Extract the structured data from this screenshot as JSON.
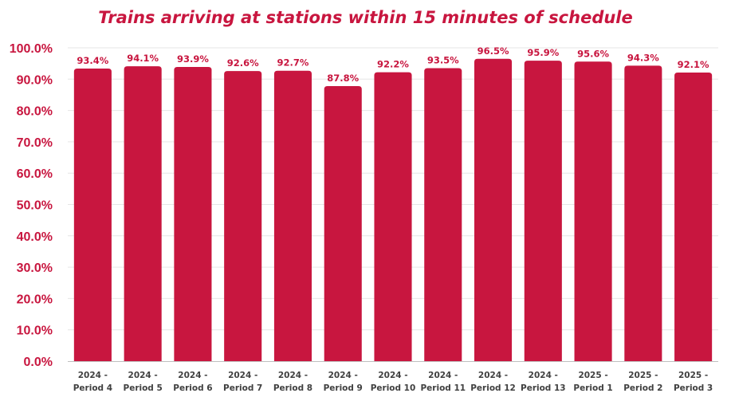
{
  "colors": {
    "accent": "#c8163f",
    "grid": "#e6e6e6",
    "axis": "#bfbfbf",
    "xtick_text": "#404040"
  },
  "chart_data": {
    "type": "bar",
    "title": "Trains arriving at stations within 15 minutes of schedule",
    "xlabel": "",
    "ylabel": "",
    "ylim": [
      0,
      100
    ],
    "ytick_values": [
      0,
      10,
      20,
      30,
      40,
      50,
      60,
      70,
      80,
      90,
      100
    ],
    "ytick_labels": [
      "0.0%",
      "10.0%",
      "20.0%",
      "30.0%",
      "40.0%",
      "50.0%",
      "60.0%",
      "70.0%",
      "80.0%",
      "90.0%",
      "100.0%"
    ],
    "grid": true,
    "legend": "none",
    "categories": [
      [
        "2024 -",
        "Period 4"
      ],
      [
        "2024 -",
        "Period 5"
      ],
      [
        "2024 -",
        "Period 6"
      ],
      [
        "2024 -",
        "Period 7"
      ],
      [
        "2024 -",
        "Period 8"
      ],
      [
        "2024 -",
        "Period 9"
      ],
      [
        "2024 -",
        "Period 10"
      ],
      [
        "2024 -",
        "Period 11"
      ],
      [
        "2024 -",
        "Period 12"
      ],
      [
        "2024 -",
        "Period 13"
      ],
      [
        "2025 -",
        "Period 1"
      ],
      [
        "2025 -",
        "Period 2"
      ],
      [
        "2025 -",
        "Period 3"
      ]
    ],
    "values": [
      93.4,
      94.1,
      93.9,
      92.6,
      92.7,
      87.8,
      92.2,
      93.5,
      96.5,
      95.9,
      95.6,
      94.3,
      92.1
    ],
    "data_labels": [
      "93.4%",
      "94.1%",
      "93.9%",
      "92.6%",
      "92.7%",
      "87.8%",
      "92.2%",
      "93.5%",
      "96.5%",
      "95.9%",
      "95.6%",
      "94.3%",
      "92.1%"
    ]
  }
}
